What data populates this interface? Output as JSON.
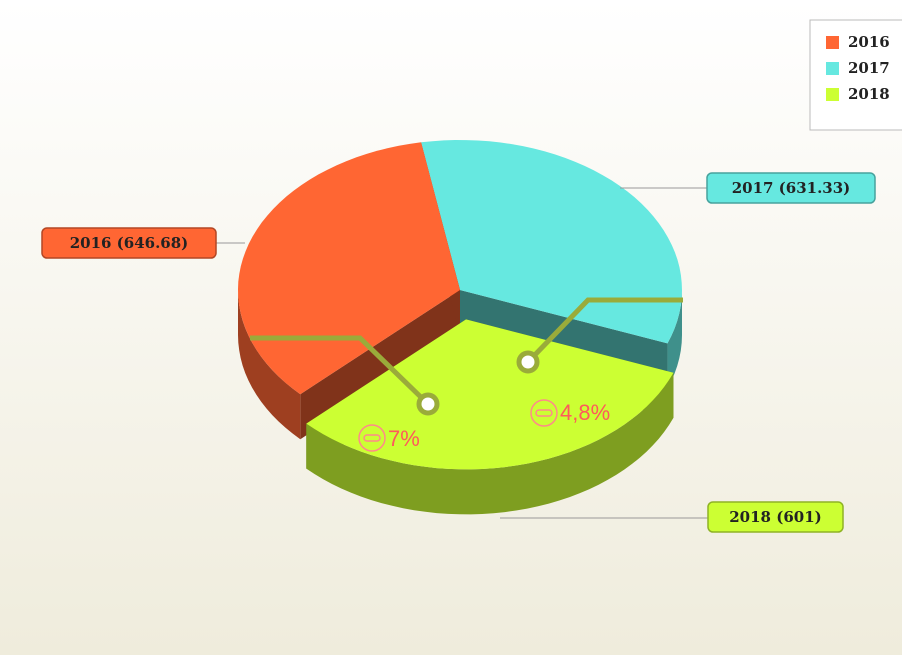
{
  "chart_data": {
    "type": "pie",
    "categories": [
      "2016",
      "2017",
      "2018"
    ],
    "values": [
      646.68,
      631.33,
      601
    ],
    "value_labels": [
      "2016 (646.68)",
      "2017 (631.33)",
      "2018 (601)"
    ],
    "colors": [
      "#ff6633",
      "#66e8e0",
      "#ccff33"
    ],
    "legend": "top-right",
    "annotations": [
      {
        "text": "7%"
      },
      {
        "text": "4,8%"
      }
    ]
  }
}
